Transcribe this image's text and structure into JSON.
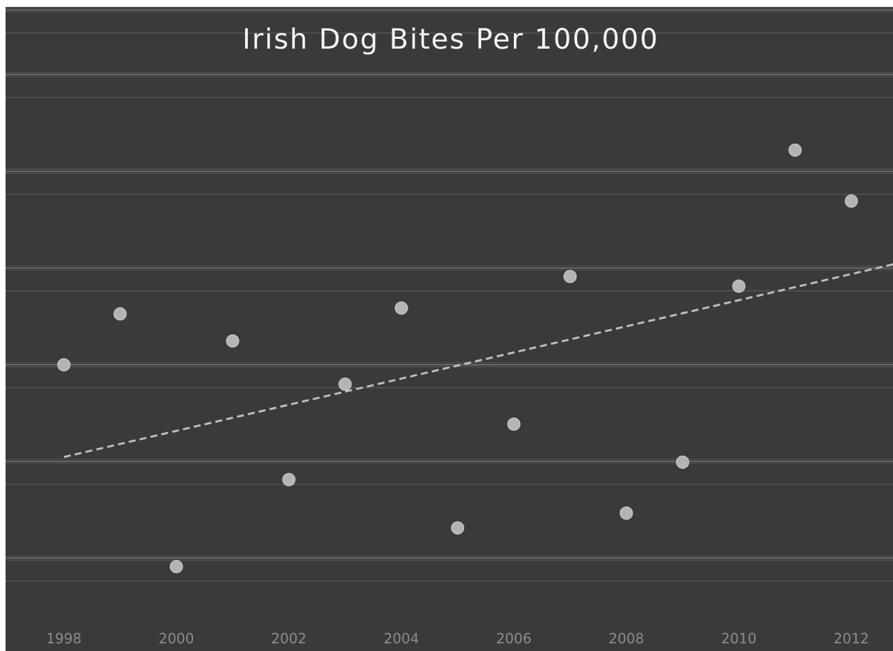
{
  "chart_data": {
    "type": "scatter",
    "title": "Irish Dog Bites Per 100,000",
    "xlabel": "",
    "ylabel": "",
    "xlim": [
      1997.7,
      2012.8
    ],
    "ylim": [
      0,
      100
    ],
    "x_ticks": [
      "1998",
      "2000",
      "2002",
      "2004",
      "2006",
      "2008",
      "2010",
      "2012"
    ],
    "x": [
      1998,
      1999,
      2000,
      2001,
      2002,
      2003,
      2004,
      2005,
      2006,
      2007,
      2008,
      2009,
      2010,
      2011,
      2012
    ],
    "y": [
      44.5,
      52.4,
      13.2,
      48.2,
      26.7,
      41.5,
      53.3,
      19.2,
      35.3,
      58.2,
      21.5,
      29.4,
      56.7,
      77.8,
      69.9
    ],
    "trendline": {
      "style": "dashed",
      "x": [
        1998,
        2012.8
      ],
      "y": [
        30.2,
        60.2
      ]
    },
    "grid": "horizontal",
    "legend": "none",
    "colors": {
      "background": "#3a3a3a",
      "gridline": "#8a8a8a",
      "points": "#b4b4b4",
      "trendline": "#bdbdbd",
      "title": "#f4f4f4",
      "tick_labels": "#8c8c8c"
    }
  }
}
